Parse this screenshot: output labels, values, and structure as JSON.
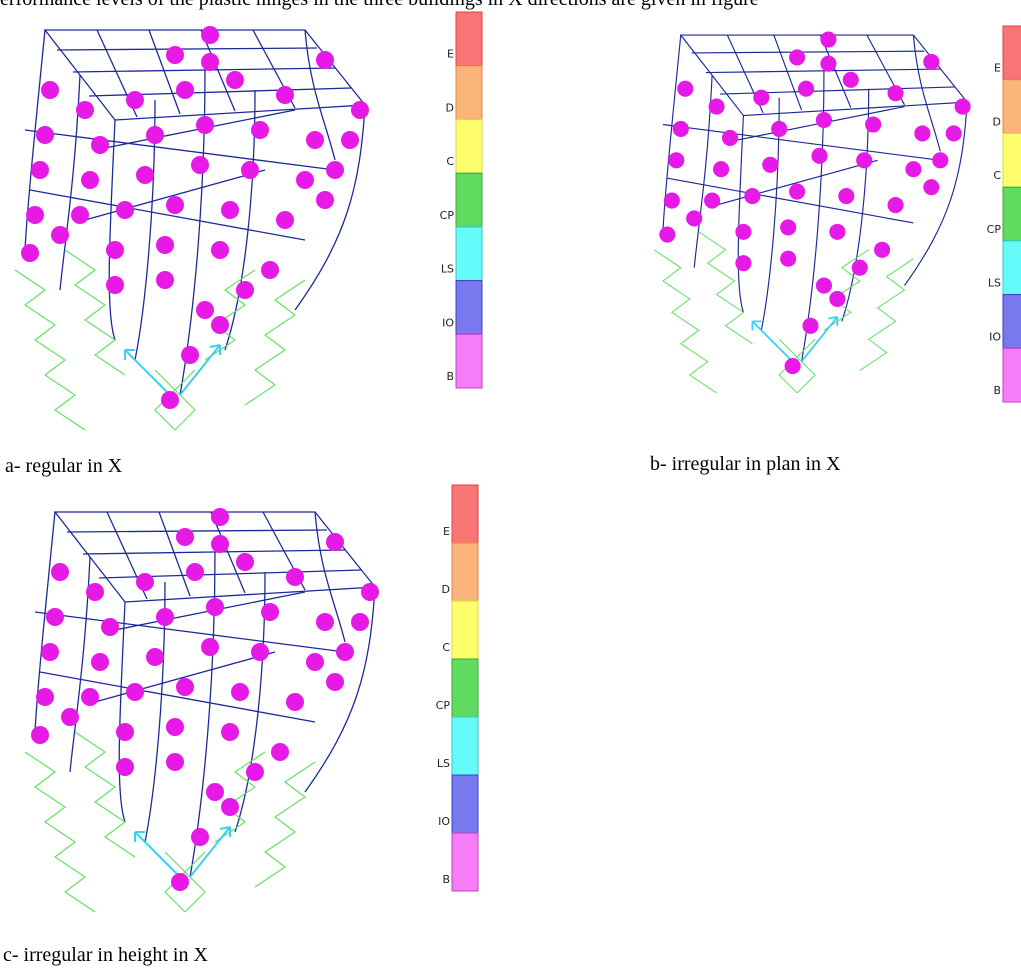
{
  "header": {
    "text": "erformance levels of the plastic hinges in the three buildings in X directions are given in figure"
  },
  "panels": [
    {
      "caption": "a- regular in X",
      "legend": [
        "E",
        "D",
        "C",
        "CP",
        "LS",
        "IO",
        "B"
      ]
    },
    {
      "caption": "b- irregular in plan in X",
      "legend": [
        "E",
        "D",
        "C",
        "CP",
        "LS",
        "IO",
        "B"
      ]
    },
    {
      "caption": "c- irregular in height in X",
      "legend": [
        "E",
        "D",
        "C",
        "CP",
        "LS",
        "IO",
        "B"
      ]
    }
  ]
}
